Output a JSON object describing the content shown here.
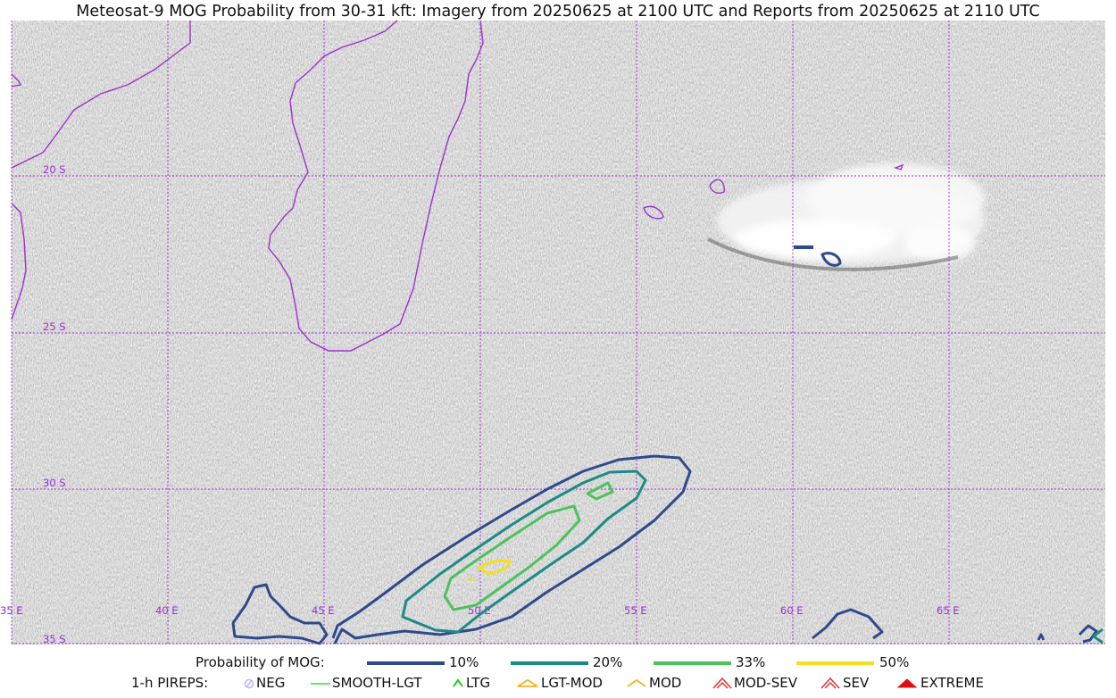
{
  "title": "Meteosat-9 MOG Probability from 30-31 kft: Imagery from 20250625 at 2100 UTC and Reports from 20250625 at 2110 UTC",
  "map": {
    "lat_labels": [
      "20 S",
      "25 S",
      "30 S",
      "35 S"
    ],
    "lon_labels": [
      "35 E",
      "40 E",
      "45 E",
      "50 E",
      "55 E",
      "60 E",
      "65 E"
    ],
    "colors": {
      "grid": "#9b30d0",
      "coast": "#9b30d0"
    }
  },
  "legend": {
    "probability_label": "Probability of MOG:",
    "levels": [
      {
        "label": "10%",
        "color": "#2e4a8c"
      },
      {
        "label": "20%",
        "color": "#1c8a85"
      },
      {
        "label": "33%",
        "color": "#4cc25b"
      },
      {
        "label": "50%",
        "color": "#f3e01f"
      }
    ],
    "pireps_label": "1-h PIREPS:",
    "pireps": [
      {
        "label": "NEG",
        "icon": "neg-circle-icon",
        "color": "#b8b8ff"
      },
      {
        "label": "SMOOTH-LGT",
        "icon": "smooth-lgt-line-icon",
        "color": "#33dd33"
      },
      {
        "label": "LTG",
        "icon": "ltg-caret-icon",
        "color": "#22cc22"
      },
      {
        "label": "LGT-MOD",
        "icon": "lgt-mod-caret-icon",
        "color": "#f2b21e"
      },
      {
        "label": "MOD",
        "icon": "mod-caret-icon",
        "color": "#f2b21e"
      },
      {
        "label": "MOD-SEV",
        "icon": "mod-sev-caret-icon",
        "color": "#e33030"
      },
      {
        "label": "SEV",
        "icon": "sev-caret-icon",
        "color": "#e33030"
      },
      {
        "label": "EXTREME",
        "icon": "extreme-caret-icon",
        "color": "#dd1111"
      }
    ]
  }
}
